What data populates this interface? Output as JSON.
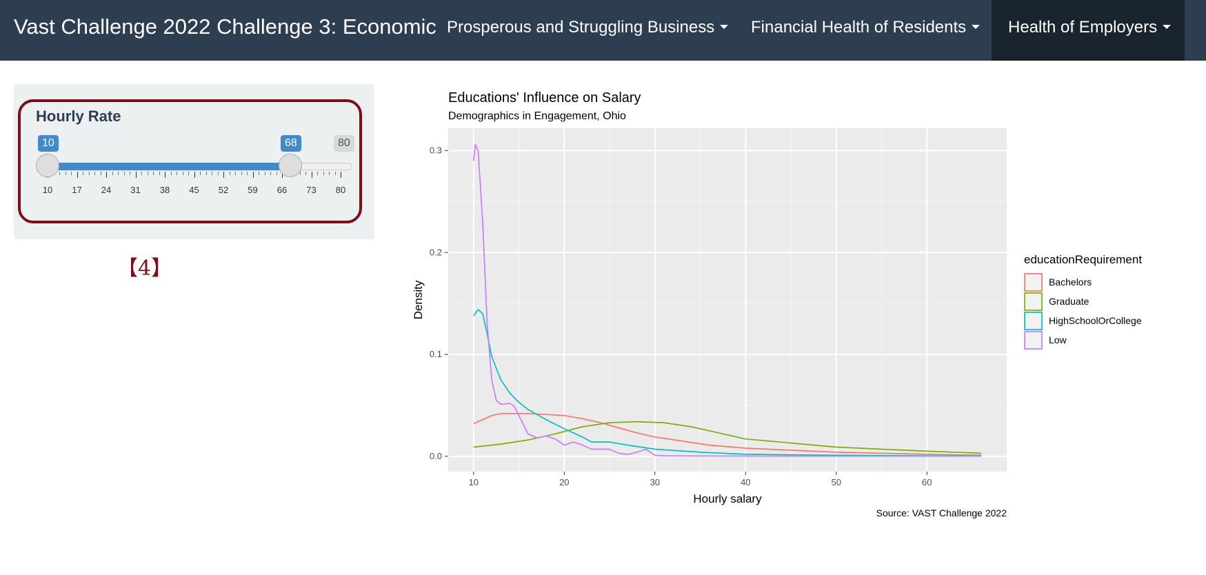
{
  "navbar": {
    "title": "Vast Challenge 2022 Challenge 3: Economic",
    "items": [
      {
        "label": "Prosperous and Struggling Business"
      },
      {
        "label": "Financial Health of Residents"
      },
      {
        "label": "Health of Employers",
        "active": true
      }
    ]
  },
  "slider": {
    "label": "Hourly Rate",
    "min": 10,
    "max": 80,
    "from": 10,
    "to": 68,
    "tick_labels": [
      "10",
      "17",
      "24",
      "31",
      "38",
      "45",
      "52",
      "59",
      "66",
      "73",
      "80"
    ]
  },
  "step_marker": "【4】",
  "colors": {
    "navbar": "#2c3e50",
    "slider_accent": "#428bca",
    "highlight_border": "#7d0e16",
    "panel_bg": "#ebebeb"
  },
  "chart_data": {
    "type": "line",
    "title": "Educations' Influence on Salary",
    "subtitle": "Demographics in Engagement, Ohio",
    "xlabel": "Hourly salary",
    "ylabel": "Density",
    "caption": "Source: VAST Challenge 2022",
    "xlim": [
      7.2,
      68.8
    ],
    "ylim": [
      -0.015,
      0.322
    ],
    "x_ticks": [
      10,
      20,
      30,
      40,
      50,
      60
    ],
    "y_ticks": [
      0.0,
      0.1,
      0.2,
      0.3
    ],
    "y_tick_labels": [
      "0.0",
      "0.1",
      "0.2",
      "0.3"
    ],
    "grid": true,
    "legend_title": "educationRequirement",
    "legend_position": "right",
    "series": [
      {
        "name": "Bachelors",
        "color": "#F8766D",
        "x": [
          10,
          11,
          12,
          13,
          14,
          16,
          18,
          20,
          22,
          24,
          26,
          28,
          30,
          33,
          36,
          40,
          45,
          50,
          55,
          60,
          66
        ],
        "y": [
          0.032,
          0.036,
          0.04,
          0.042,
          0.042,
          0.042,
          0.041,
          0.04,
          0.037,
          0.033,
          0.028,
          0.023,
          0.019,
          0.015,
          0.011,
          0.008,
          0.006,
          0.004,
          0.003,
          0.002,
          0.001
        ]
      },
      {
        "name": "Graduate",
        "color": "#7CAE00",
        "x": [
          10,
          13,
          16,
          19,
          22,
          25,
          28,
          31,
          34,
          37,
          40,
          45,
          50,
          55,
          60,
          66
        ],
        "y": [
          0.009,
          0.012,
          0.016,
          0.022,
          0.029,
          0.033,
          0.034,
          0.033,
          0.029,
          0.023,
          0.017,
          0.013,
          0.009,
          0.007,
          0.005,
          0.003
        ]
      },
      {
        "name": "HighSchoolOrCollege",
        "color": "#00BFC4",
        "x": [
          10,
          10.5,
          11,
          11.5,
          12,
          13,
          14,
          15,
          16,
          18,
          20,
          22,
          23,
          25,
          27,
          30,
          35,
          40,
          50,
          60,
          66
        ],
        "y": [
          0.138,
          0.144,
          0.14,
          0.12,
          0.098,
          0.075,
          0.062,
          0.053,
          0.046,
          0.036,
          0.027,
          0.019,
          0.014,
          0.014,
          0.011,
          0.007,
          0.004,
          0.002,
          0.001,
          0.0005,
          0.0003
        ]
      },
      {
        "name": "Low",
        "color": "#C77CFF",
        "x": [
          10,
          10.2,
          10.5,
          11,
          11.5,
          12,
          12.5,
          13,
          14,
          14.5,
          15,
          16,
          17,
          18,
          19,
          20,
          21,
          22,
          23,
          24,
          25,
          26,
          27,
          28,
          29,
          30,
          31,
          35,
          40,
          50,
          60,
          66
        ],
        "y": [
          0.29,
          0.306,
          0.3,
          0.23,
          0.13,
          0.075,
          0.055,
          0.051,
          0.052,
          0.049,
          0.04,
          0.022,
          0.018,
          0.02,
          0.017,
          0.011,
          0.014,
          0.011,
          0.007,
          0.007,
          0.007,
          0.003,
          0.002,
          0.004,
          0.007,
          0.001,
          0.0005,
          0.0003,
          0.0002,
          0.0001,
          0.0001,
          0.0001
        ]
      }
    ]
  }
}
